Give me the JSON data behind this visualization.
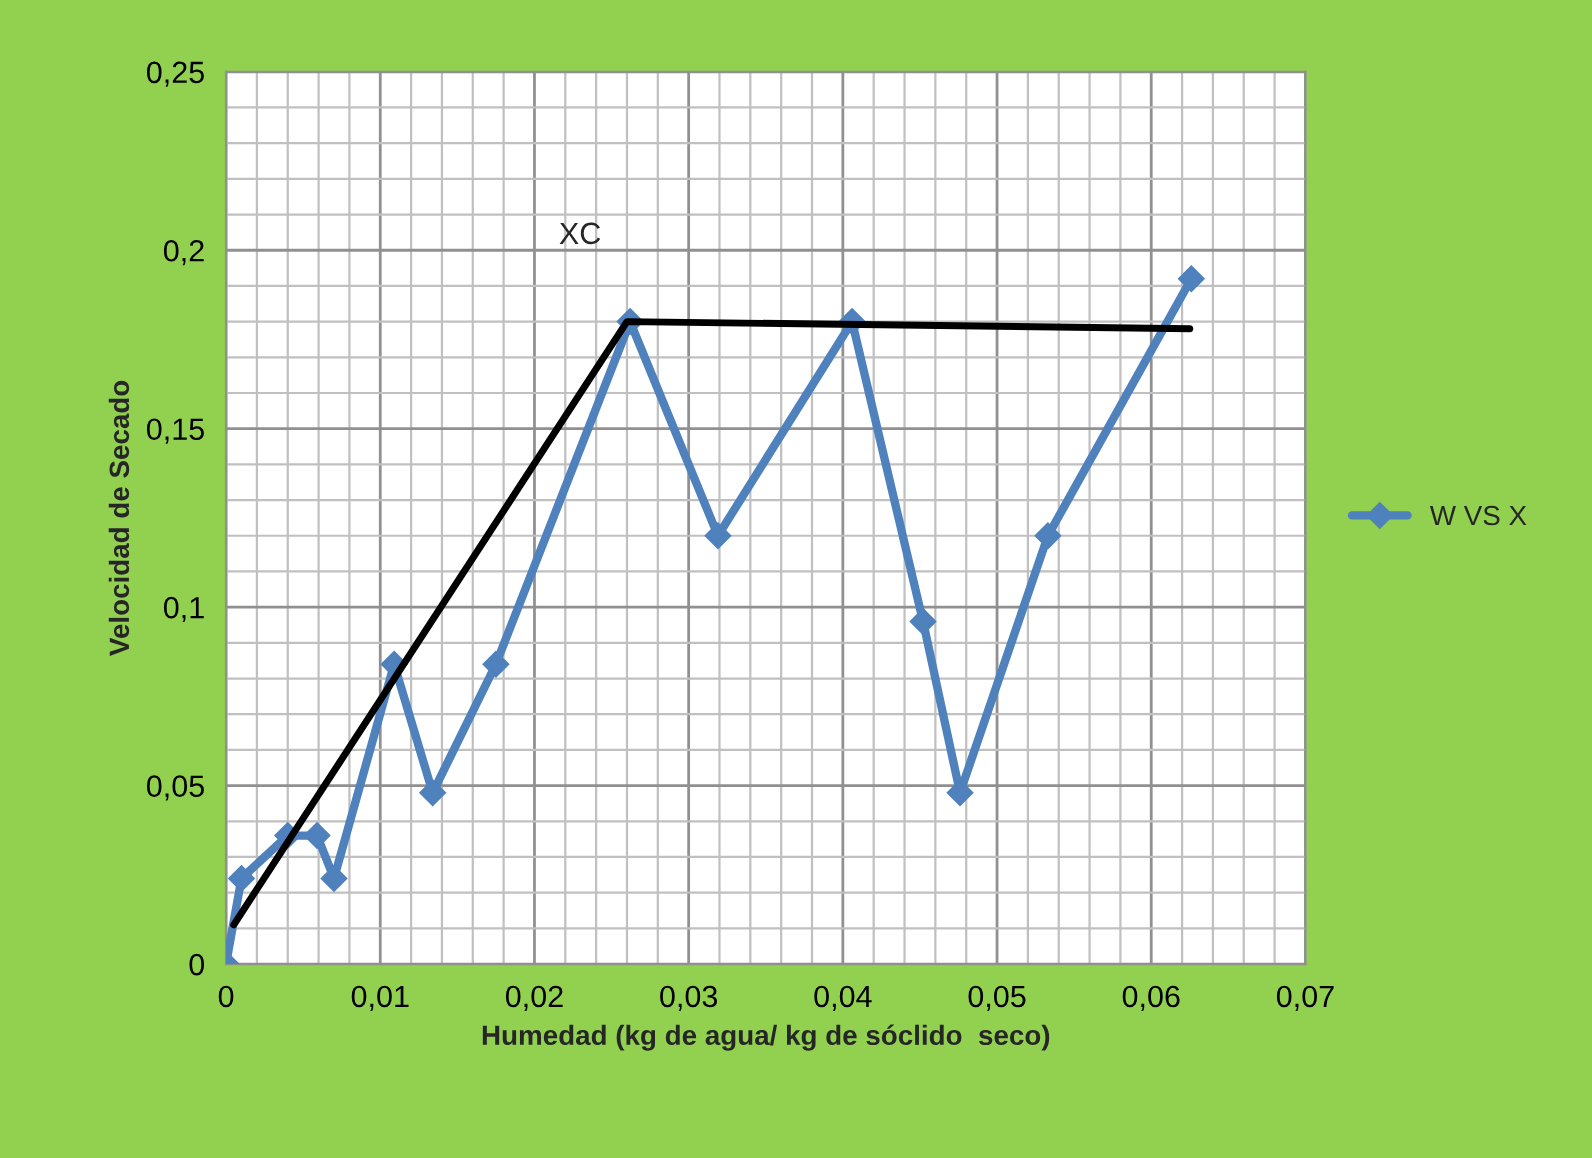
{
  "chart_data": {
    "type": "line",
    "xlabel": "Humedad (kg de agua/ kg de sóclido  seco)",
    "ylabel": "Velocidad de Secado",
    "xlim": [
      0,
      0.07
    ],
    "xticks": [
      {
        "value": 0,
        "label": "0"
      },
      {
        "value": 0.01,
        "label": "0,01"
      },
      {
        "value": 0.02,
        "label": "0,02"
      },
      {
        "value": 0.03,
        "label": "0,03"
      },
      {
        "value": 0.04,
        "label": "0,04"
      },
      {
        "value": 0.05,
        "label": "0,05"
      },
      {
        "value": 0.06,
        "label": "0,06"
      },
      {
        "value": 0.07,
        "label": "0,07"
      }
    ],
    "ylim": [
      0,
      0.25
    ],
    "yticks": [
      {
        "value": 0,
        "label": "0"
      },
      {
        "value": 0.05,
        "label": "0,05"
      },
      {
        "value": 0.1,
        "label": "0,1"
      },
      {
        "value": 0.15,
        "label": "0,15"
      },
      {
        "value": 0.2,
        "label": "0,2"
      },
      {
        "value": 0.25,
        "label": "0,25"
      }
    ],
    "grid": true,
    "legend": "right",
    "marker": "diamond",
    "annotations": [
      "XC"
    ],
    "series": [
      {
        "name": "W VS X",
        "color": "#4f81bd",
        "x": [
          0,
          0.001,
          0.004,
          0.0059,
          0.007,
          0.0109,
          0.0134,
          0.0175,
          0.0262,
          0.0319,
          0.0406,
          0.0452,
          0.0476,
          0.0533,
          0.0626
        ],
        "values": [
          0,
          0.024,
          0.036,
          0.036,
          0.024,
          0.084,
          0.048,
          0.084,
          0.18,
          0.12,
          0.18,
          0.096,
          0.048,
          0.12,
          0.192
        ]
      },
      {
        "type": "line",
        "color": "#000000",
        "marker": "none",
        "x": [
          0.0005,
          0.026,
          0.0625
        ],
        "values": [
          0.011,
          0.18,
          0.178
        ]
      }
    ]
  }
}
